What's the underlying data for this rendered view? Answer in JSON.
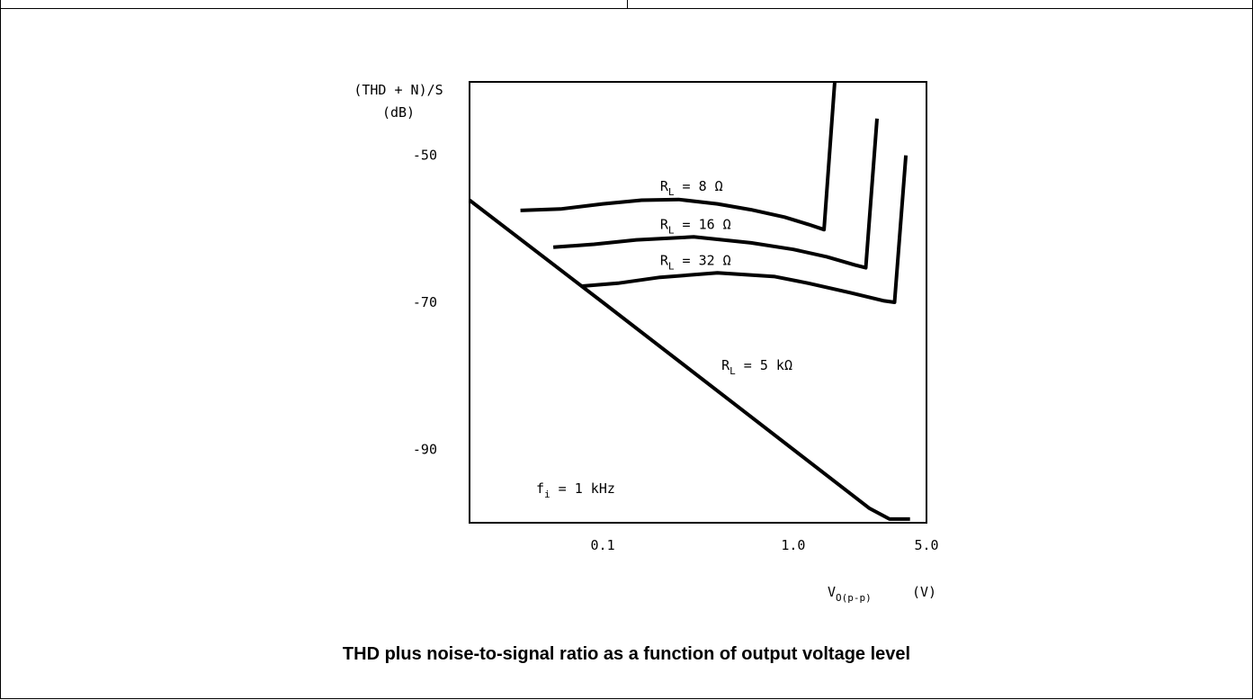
{
  "chart_data": {
    "type": "line",
    "x_scale": "log",
    "xlim": [
      0.02,
      5.0
    ],
    "ylim": [
      -100,
      -40
    ],
    "ylabel": "(THD + N)/S",
    "ylabel_unit": "(dB)",
    "xlabel_main": "V",
    "xlabel_sub": "O(p-p)",
    "xlabel_unit": "(V)",
    "x_ticks": [
      {
        "value": 0.1,
        "label": "0.1"
      },
      {
        "value": 1.0,
        "label": "1.0"
      },
      {
        "value": 5.0,
        "label": "5.0"
      }
    ],
    "y_ticks": [
      {
        "value": -50,
        "label": "-50"
      },
      {
        "value": -70,
        "label": "-70"
      },
      {
        "value": -90,
        "label": "-90"
      }
    ],
    "grid": false,
    "annotation": {
      "main": "f",
      "sub": "i",
      "rest": " =  1 kHz"
    },
    "series": [
      {
        "label_main": "R",
        "label_sub": "L",
        "label_rest": " =  8 Ω",
        "label_at": [
          0.2,
          -54.8
        ],
        "points": [
          [
            0.037,
            -57.5
          ],
          [
            0.06,
            -57.3
          ],
          [
            0.1,
            -56.6
          ],
          [
            0.16,
            -56.1
          ],
          [
            0.25,
            -56.0
          ],
          [
            0.4,
            -56.6
          ],
          [
            0.6,
            -57.4
          ],
          [
            0.9,
            -58.4
          ],
          [
            1.2,
            -59.4
          ],
          [
            1.45,
            -60.1
          ],
          [
            1.65,
            -40.0
          ]
        ]
      },
      {
        "label_main": "R",
        "label_sub": "L",
        "label_rest": " =  16 Ω",
        "label_at": [
          0.2,
          -60.0
        ],
        "points": [
          [
            0.055,
            -62.5
          ],
          [
            0.09,
            -62.1
          ],
          [
            0.15,
            -61.5
          ],
          [
            0.3,
            -61.1
          ],
          [
            0.6,
            -61.9
          ],
          [
            1.0,
            -62.8
          ],
          [
            1.5,
            -63.8
          ],
          [
            2.1,
            -64.9
          ],
          [
            2.4,
            -65.3
          ],
          [
            2.75,
            -45.0
          ]
        ]
      },
      {
        "label_main": "R",
        "label_sub": "L",
        "label_rest": " =  32 Ω",
        "label_at": [
          0.2,
          -64.9
        ],
        "points": [
          [
            0.078,
            -67.8
          ],
          [
            0.12,
            -67.4
          ],
          [
            0.2,
            -66.6
          ],
          [
            0.4,
            -66.0
          ],
          [
            0.8,
            -66.5
          ],
          [
            1.2,
            -67.4
          ],
          [
            2.0,
            -68.7
          ],
          [
            3.0,
            -69.8
          ],
          [
            3.4,
            -70.0
          ],
          [
            3.9,
            -50.0
          ]
        ]
      },
      {
        "label_main": "R",
        "label_sub": "L",
        "label_rest": " =  5 kΩ",
        "label_at": [
          0.42,
          -79.2
        ],
        "points": [
          [
            0.02,
            -56.1
          ],
          [
            0.1,
            -70.0
          ],
          [
            0.5,
            -84.0
          ],
          [
            2.5,
            -98.0
          ],
          [
            3.2,
            -99.5
          ],
          [
            4.1,
            -99.5
          ]
        ]
      }
    ]
  },
  "caption": "THD plus noise-to-signal ratio as a function of output voltage level"
}
